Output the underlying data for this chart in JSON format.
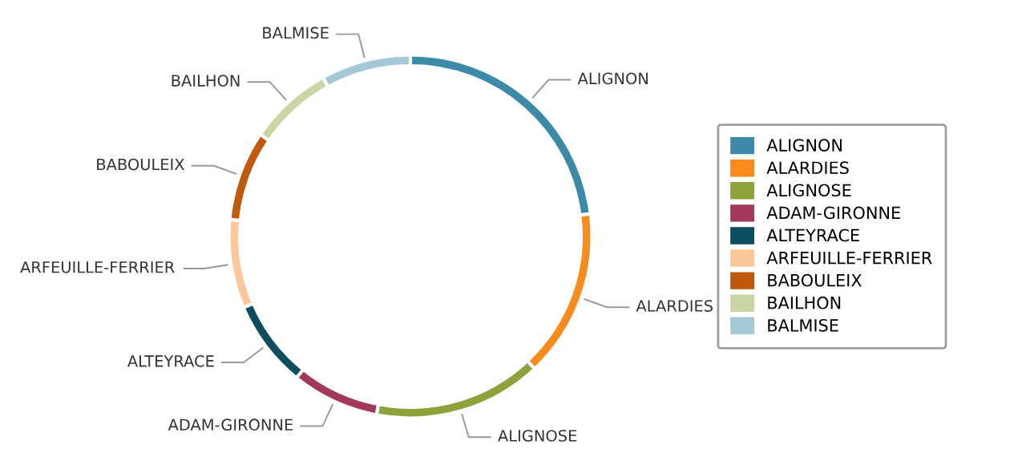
{
  "chart_data": {
    "type": "donut",
    "categories": [
      "ALIGNON",
      "ALARDIES",
      "ALIGNOSE",
      "ADAM-GIRONNE",
      "ALTEYRACE",
      "ARFEUILLE-FERRIER",
      "BABOULEIX",
      "BAILHON",
      "BALMISE"
    ],
    "values": [
      23,
      15,
      15,
      7.8,
      7.8,
      7.9,
      8,
      7.5,
      8
    ],
    "colors": [
      "#3d8aa8",
      "#f98a1c",
      "#8ca33c",
      "#a2395d",
      "#0d4d5e",
      "#fcc89b",
      "#c0580e",
      "#c9d5a2",
      "#a5c8d6"
    ],
    "legend": "right"
  }
}
